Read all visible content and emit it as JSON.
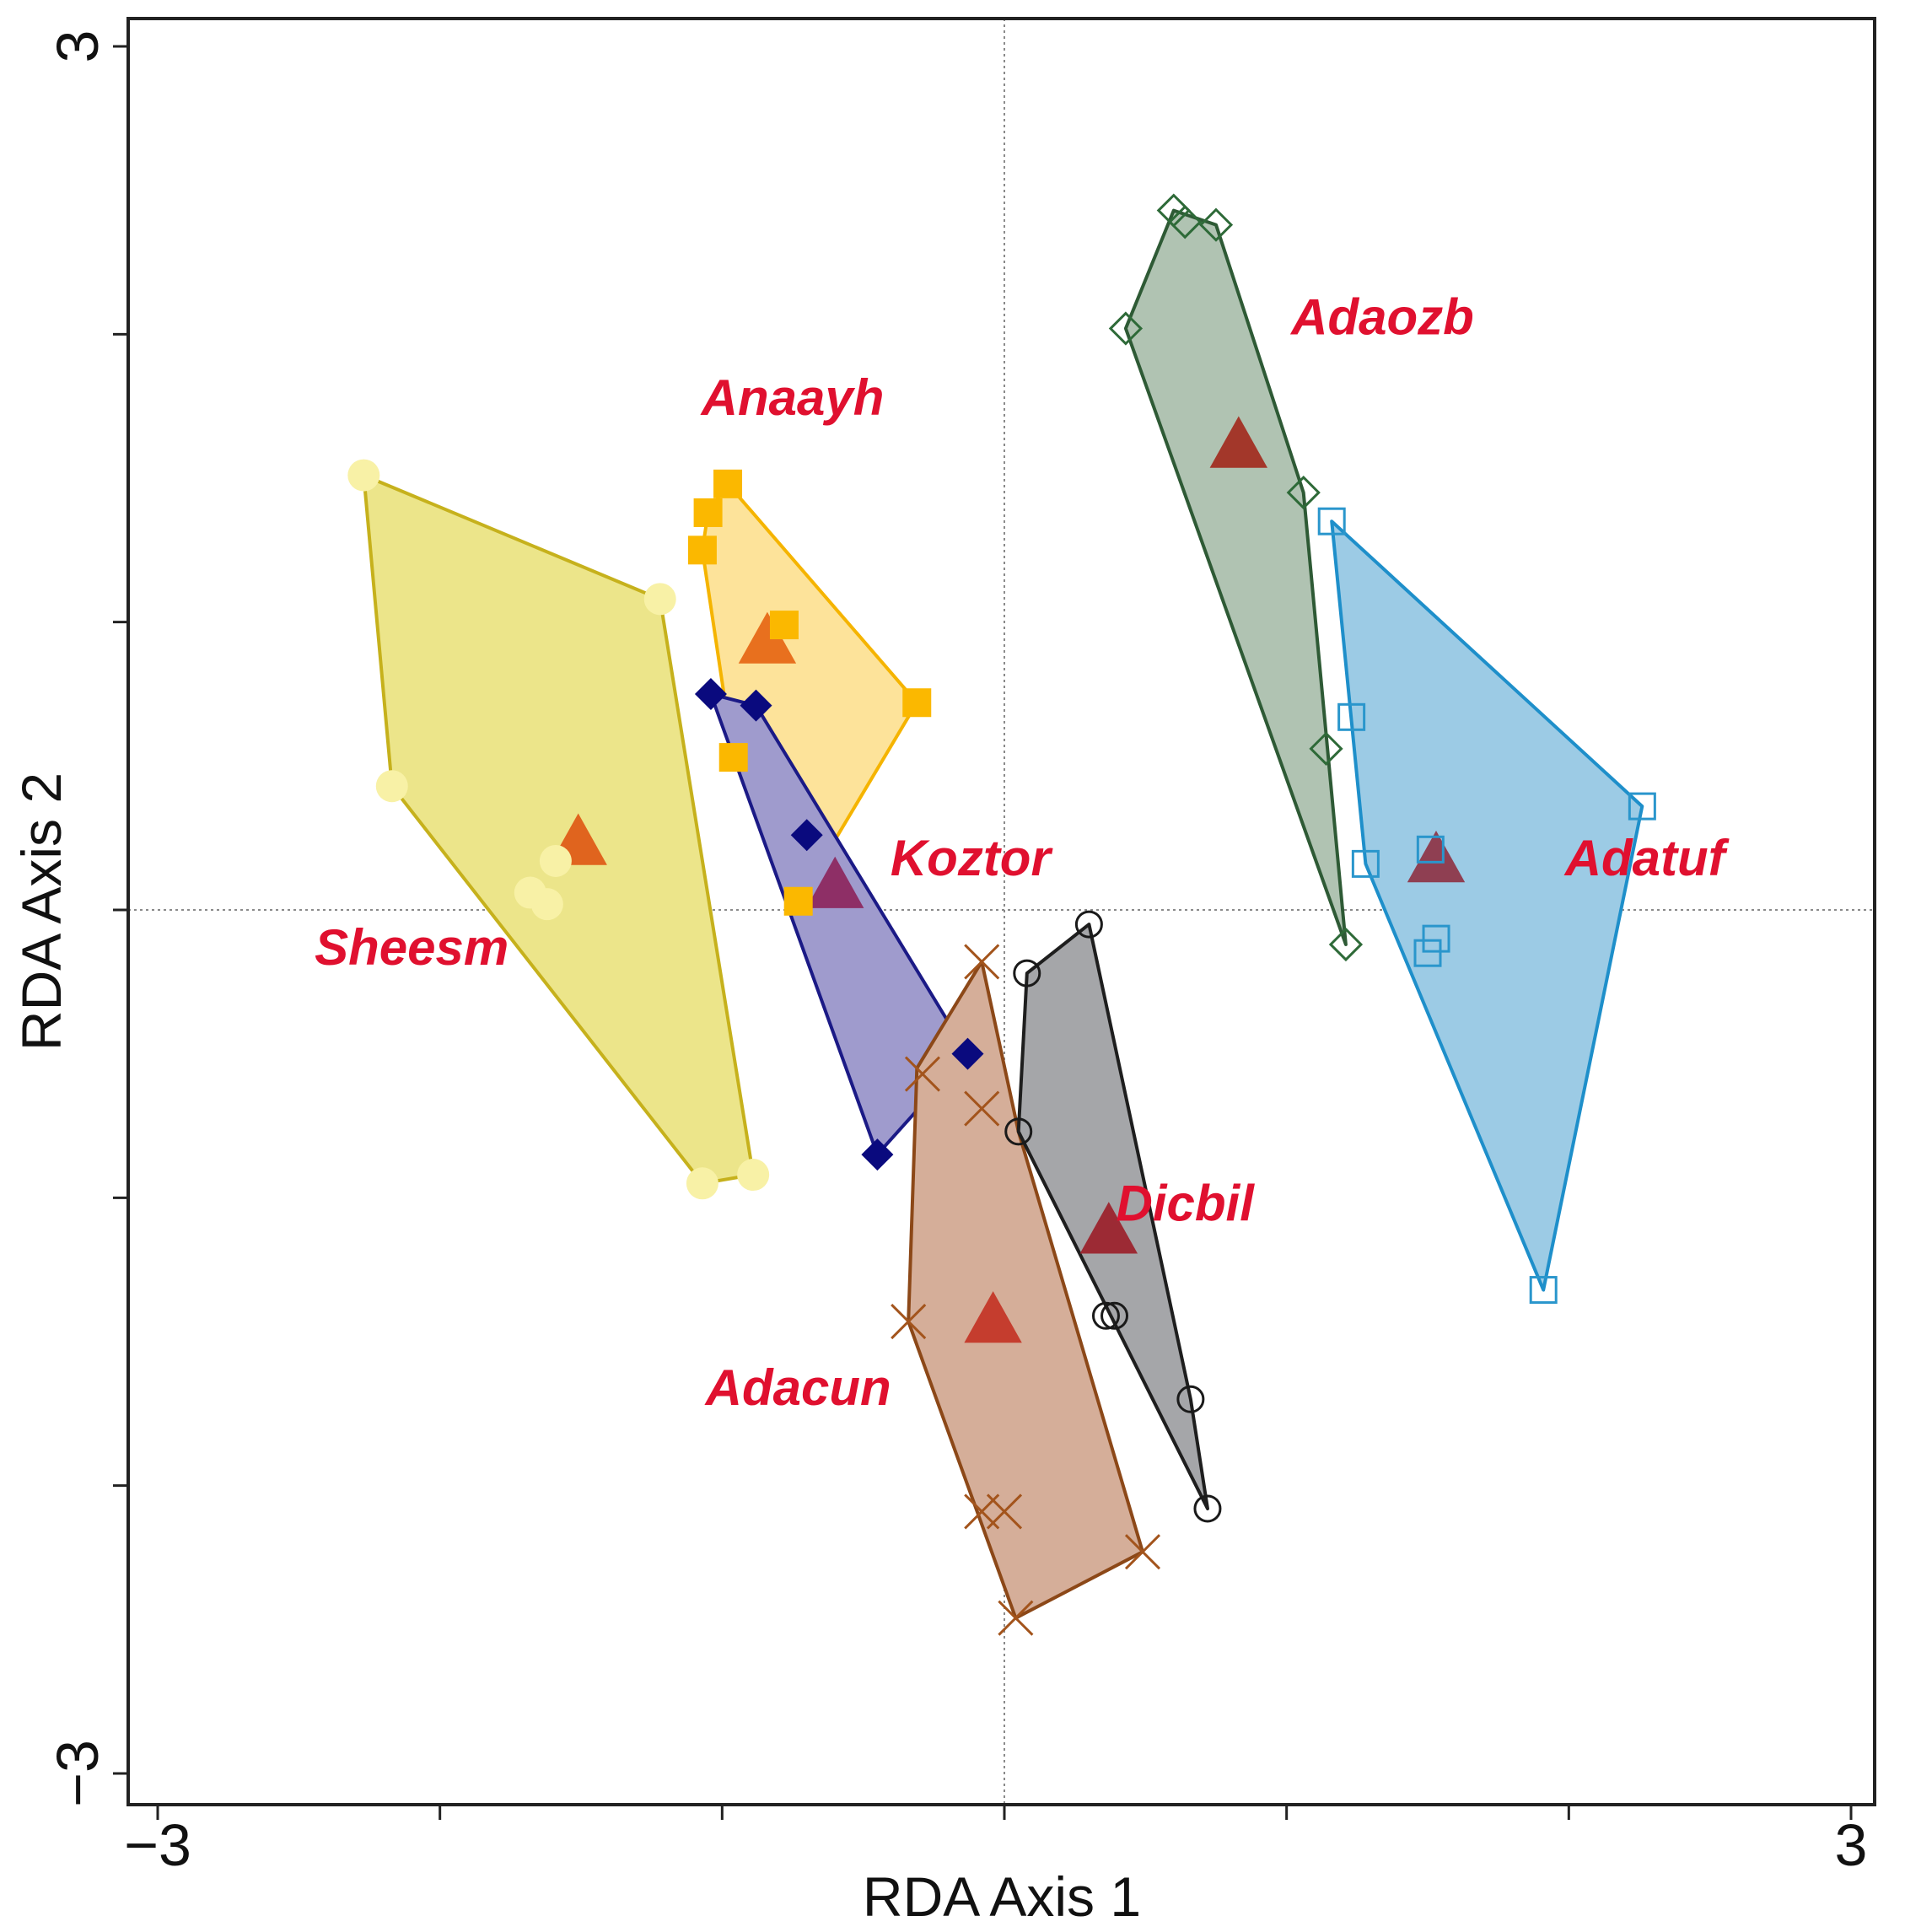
{
  "chart_data": {
    "type": "scatter",
    "subtype": "ordination hulls with group centroids",
    "title": "",
    "xlabel": "RDA Axis 1",
    "ylabel": "RDA Axis 2",
    "xlim": [
      -3,
      3
    ],
    "ylim": [
      -3,
      3
    ],
    "x_ticks": [
      -3,
      -2,
      -1,
      0,
      1,
      2,
      3
    ],
    "y_ticks": [
      -3,
      -2,
      -1,
      0,
      1,
      2,
      3
    ],
    "x_tick_labels": [
      {
        "value": -3,
        "text": "−3"
      },
      {
        "value": 3,
        "text": "3"
      }
    ],
    "y_tick_labels": [
      {
        "value": 3,
        "text": "3"
      },
      {
        "value": -3,
        "text": "−3"
      }
    ],
    "reference_lines": {
      "x": 0,
      "y": 0,
      "style": "dotted"
    },
    "label_color": "#e0102f",
    "centroid_marker": "triangle",
    "series": [
      {
        "name": "Sheesm",
        "label": "Sheesm",
        "label_pos": [
          -2.1,
          -0.19
        ],
        "marker": "circle",
        "marker_filled": true,
        "fill": "#ece58a",
        "stroke": "#c6b11c",
        "marker_color": "#f8f1a6",
        "centroid_color": "#e0641e",
        "hull": [
          [
            -2.27,
            1.51
          ],
          [
            -1.22,
            1.08
          ],
          [
            -0.89,
            -0.92
          ],
          [
            -1.07,
            -0.95
          ],
          [
            -2.17,
            0.43
          ]
        ],
        "points": [
          [
            -2.27,
            1.51
          ],
          [
            -1.22,
            1.08
          ],
          [
            -2.17,
            0.43
          ],
          [
            -1.07,
            -0.95
          ],
          [
            -0.89,
            -0.92
          ],
          [
            -1.59,
            0.17
          ],
          [
            -1.68,
            0.06
          ],
          [
            -1.62,
            0.02
          ]
        ],
        "centroid": [
          -1.51,
          0.23
        ]
      },
      {
        "name": "Anaayh",
        "label": "Anaayh",
        "label_pos": [
          -0.75,
          1.72
        ],
        "marker": "square",
        "marker_filled": true,
        "fill": "#fde39a",
        "stroke": "#f5b400",
        "marker_color": "#fbb800",
        "centroid_color": "#e8701e",
        "hull": [
          [
            -0.98,
            1.48
          ],
          [
            -0.31,
            0.72
          ],
          [
            -0.73,
            0.03
          ],
          [
            -0.96,
            0.53
          ],
          [
            -1.07,
            1.25
          ],
          [
            -1.05,
            1.38
          ]
        ],
        "points": [
          [
            -0.98,
            1.48
          ],
          [
            -1.05,
            1.38
          ],
          [
            -1.07,
            1.25
          ],
          [
            -0.78,
            0.99
          ],
          [
            -0.31,
            0.72
          ],
          [
            -0.96,
            0.53
          ],
          [
            -0.73,
            0.03
          ]
        ],
        "centroid": [
          -0.84,
          0.93
        ]
      },
      {
        "name": "Koztor",
        "label": "Koztor",
        "label_pos": [
          -0.12,
          0.12
        ],
        "marker": "diamond",
        "marker_filled": true,
        "fill": "#9f9bcd",
        "stroke": "#1b1a86",
        "marker_color": "#0a0a7e",
        "centroid_color": "#8e2f66",
        "hull": [
          [
            -1.04,
            0.75
          ],
          [
            -0.88,
            0.71
          ],
          [
            -0.13,
            -0.5
          ],
          [
            -0.45,
            -0.85
          ]
        ],
        "points": [
          [
            -1.04,
            0.75
          ],
          [
            -0.88,
            0.71
          ],
          [
            -0.7,
            0.26
          ],
          [
            -0.13,
            -0.5
          ],
          [
            -0.45,
            -0.85
          ]
        ],
        "centroid": [
          -0.6,
          0.08
        ]
      },
      {
        "name": "Adacun",
        "label": "Adacun",
        "label_pos": [
          -0.73,
          -1.72
        ],
        "marker": "x",
        "marker_filled": false,
        "fill": "#d5ae99",
        "stroke": "#8c4818",
        "marker_color": "#a3541c",
        "centroid_color": "#c53d2e",
        "hull": [
          [
            -0.08,
            -0.18
          ],
          [
            0.05,
            -0.77
          ],
          [
            0.49,
            -2.23
          ],
          [
            0.04,
            -2.46
          ],
          [
            -0.34,
            -1.43
          ],
          [
            -0.31,
            -0.55
          ]
        ],
        "points": [
          [
            -0.08,
            -0.18
          ],
          [
            -0.29,
            -0.57
          ],
          [
            -0.08,
            -0.69
          ],
          [
            -0.34,
            -1.43
          ],
          [
            -0.08,
            -2.09
          ],
          [
            0.0,
            -2.09
          ],
          [
            0.49,
            -2.23
          ],
          [
            0.04,
            -2.46
          ]
        ],
        "centroid": [
          -0.04,
          -1.43
        ]
      },
      {
        "name": "Dicbil",
        "label": "Dicbil",
        "label_pos": [
          0.64,
          -1.08
        ],
        "marker": "circle",
        "marker_filled": false,
        "fill": "#a5a6a9",
        "stroke": "#1e1e1e",
        "marker_color": "#1a1a1a",
        "centroid_color": "#9c2a34",
        "hull": [
          [
            0.3,
            -0.05
          ],
          [
            0.08,
            -0.22
          ],
          [
            0.05,
            -0.77
          ],
          [
            0.72,
            -2.08
          ],
          [
            0.66,
            -1.7
          ]
        ],
        "points": [
          [
            0.3,
            -0.05
          ],
          [
            0.08,
            -0.22
          ],
          [
            0.05,
            -0.77
          ],
          [
            0.36,
            -1.41
          ],
          [
            0.39,
            -1.41
          ],
          [
            0.66,
            -1.7
          ],
          [
            0.72,
            -2.08
          ]
        ],
        "centroid": [
          0.37,
          -1.12
        ]
      },
      {
        "name": "Adaozb",
        "label": "Adaozb",
        "label_pos": [
          1.34,
          2.0
        ],
        "marker": "diamond",
        "marker_filled": false,
        "fill": "#b0c3b2",
        "stroke": "#2e5a35",
        "marker_color": "#2e6a38",
        "centroid_color": "#a3372a",
        "hull": [
          [
            0.6,
            2.43
          ],
          [
            0.75,
            2.38
          ],
          [
            1.06,
            1.45
          ],
          [
            1.21,
            -0.12
          ],
          [
            0.43,
            2.02
          ]
        ],
        "points": [
          [
            0.6,
            2.43
          ],
          [
            0.64,
            2.39
          ],
          [
            0.75,
            2.38
          ],
          [
            0.43,
            2.02
          ],
          [
            1.06,
            1.45
          ],
          [
            1.14,
            0.56
          ],
          [
            1.21,
            -0.12
          ]
        ],
        "centroid": [
          0.83,
          1.61
        ]
      },
      {
        "name": "Adatuf",
        "label": "Adatuf",
        "label_pos": [
          2.27,
          0.12
        ],
        "marker": "square",
        "marker_filled": false,
        "fill": "#9ccbe5",
        "stroke": "#1e8fca",
        "marker_color": "#2a96cc",
        "centroid_color": "#8f3f52",
        "hull": [
          [
            1.16,
            1.35
          ],
          [
            2.26,
            0.36
          ],
          [
            1.91,
            -1.32
          ],
          [
            1.28,
            0.16
          ]
        ],
        "points": [
          [
            1.16,
            1.35
          ],
          [
            1.23,
            0.67
          ],
          [
            2.26,
            0.36
          ],
          [
            1.28,
            0.16
          ],
          [
            1.51,
            0.21
          ],
          [
            1.53,
            -0.1
          ],
          [
            1.5,
            -0.15
          ],
          [
            1.91,
            -1.32
          ]
        ],
        "centroid": [
          1.53,
          0.17
        ]
      }
    ]
  }
}
